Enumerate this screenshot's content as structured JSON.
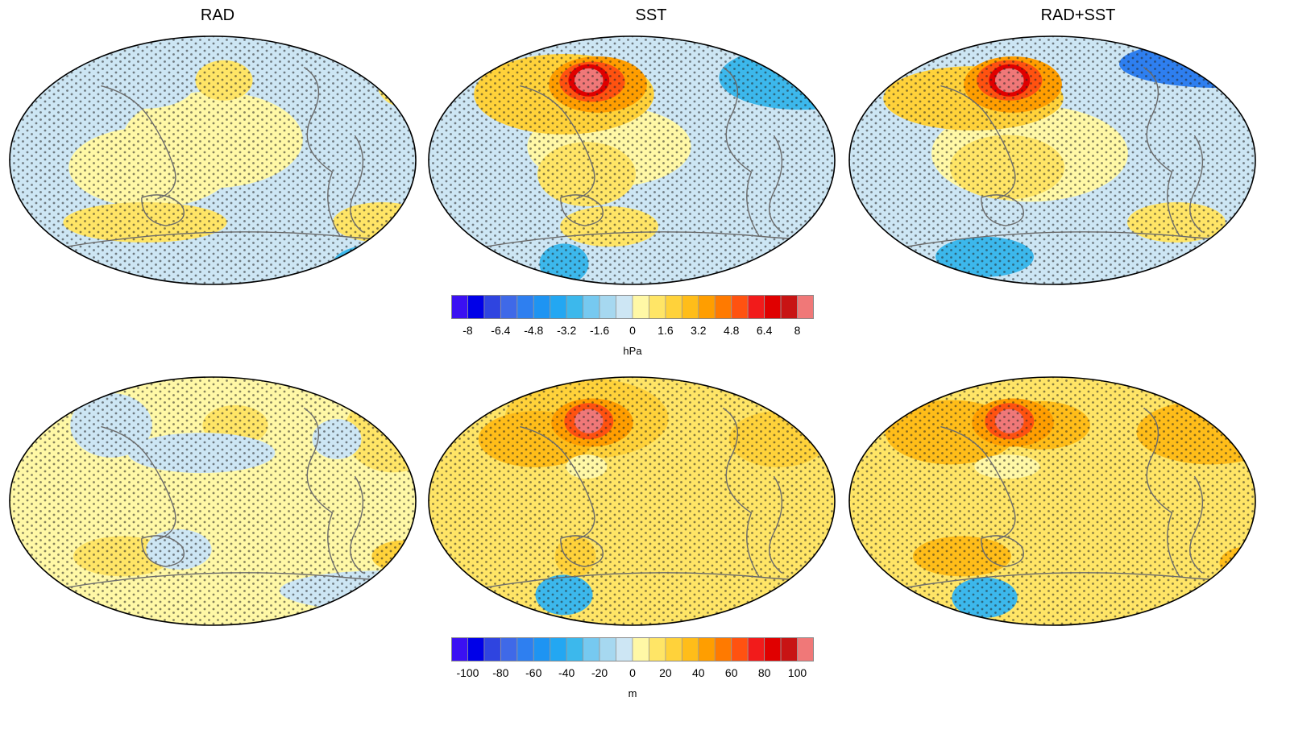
{
  "columns": [
    "RAD",
    "SST",
    "RAD+SST"
  ],
  "palette": [
    "#3b10f2",
    "#0000e8",
    "#2f44e0",
    "#3f69e8",
    "#2e7ff0",
    "#1e94f2",
    "#23a7f2",
    "#3cb8ec",
    "#76c9f0",
    "#a6d8f0",
    "#cde6f4",
    "#fff8a6",
    "#ffe566",
    "#ffd23a",
    "#ffbd19",
    "#ff9e00",
    "#ff7a00",
    "#ff5210",
    "#f21b1b",
    "#e00000",
    "#c81414",
    "#f07878"
  ],
  "rows": [
    {
      "name": "slp",
      "colorbar": {
        "ticks": [
          "-8",
          "-6.4",
          "-4.8",
          "-3.2",
          "-1.6",
          "0",
          "1.6",
          "3.2",
          "4.8",
          "6.4",
          "8"
        ],
        "unit": "hPa"
      },
      "panels": [
        {
          "column": "RAD",
          "background": "#cde6f4",
          "blobs": [
            {
              "lon": 0,
              "lat": 15,
              "rx": 0.22,
              "ry": 0.12,
              "c": "#fff8a6"
            },
            {
              "lon": -55,
              "lat": -5,
              "rx": 0.2,
              "ry": 0.1,
              "c": "#fff8a6"
            },
            {
              "lon": 175,
              "lat": 55,
              "rx": 0.08,
              "ry": 0.06,
              "c": "#ffe566"
            },
            {
              "lon": 10,
              "lat": 58,
              "rx": 0.07,
              "ry": 0.05,
              "c": "#ffe566"
            },
            {
              "lon": 170,
              "lat": -45,
              "rx": 0.06,
              "ry": 0.04,
              "c": "#ffd23a"
            },
            {
              "lon": 150,
              "lat": -45,
              "rx": 0.12,
              "ry": 0.05,
              "c": "#ffe566"
            },
            {
              "lon": -60,
              "lat": -45,
              "rx": 0.2,
              "ry": 0.05,
              "c": "#ffe566"
            },
            {
              "lon": 170,
              "lat": -75,
              "rx": 0.07,
              "ry": 0.05,
              "c": "#2f44e0"
            },
            {
              "lon": 150,
              "lat": -75,
              "rx": 0.12,
              "ry": 0.05,
              "c": "#3cb8ec"
            },
            {
              "lon": -60,
              "lat": 55,
              "rx": 0.12,
              "ry": 0.06,
              "c": "#cde6f4"
            }
          ]
        },
        {
          "column": "SST",
          "background": "#cde6f4",
          "blobs": [
            {
              "lon": -20,
              "lat": 10,
              "rx": 0.2,
              "ry": 0.1,
              "c": "#fff8a6"
            },
            {
              "lon": -40,
              "lat": -10,
              "rx": 0.12,
              "ry": 0.08,
              "c": "#ffe566"
            },
            {
              "lon": -60,
              "lat": 48,
              "rx": 0.22,
              "ry": 0.1,
              "c": "#ffd23a"
            },
            {
              "lon": -30,
              "lat": 55,
              "rx": 0.12,
              "ry": 0.07,
              "c": "#ff9e00"
            },
            {
              "lon": -35,
              "lat": 57,
              "rx": 0.08,
              "ry": 0.05,
              "c": "#ff5210"
            },
            {
              "lon": -38,
              "lat": 58,
              "rx": 0.05,
              "ry": 0.04,
              "c": "#e00000"
            },
            {
              "lon": -38,
              "lat": 58,
              "rx": 0.035,
              "ry": 0.03,
              "c": "#f07878"
            },
            {
              "lon": -60,
              "lat": -75,
              "rx": 0.06,
              "ry": 0.05,
              "c": "#3cb8ec"
            },
            {
              "lon": 150,
              "lat": 60,
              "rx": 0.2,
              "ry": 0.08,
              "c": "#3cb8ec"
            },
            {
              "lon": -20,
              "lat": -48,
              "rx": 0.12,
              "ry": 0.05,
              "c": "#ffe566"
            }
          ]
        },
        {
          "column": "RAD+SST",
          "background": "#cde6f4",
          "blobs": [
            {
              "lon": -20,
              "lat": 5,
              "rx": 0.24,
              "ry": 0.12,
              "c": "#fff8a6"
            },
            {
              "lon": -40,
              "lat": -5,
              "rx": 0.14,
              "ry": 0.08,
              "c": "#ffe566"
            },
            {
              "lon": -70,
              "lat": 45,
              "rx": 0.22,
              "ry": 0.08,
              "c": "#ffd23a"
            },
            {
              "lon": -35,
              "lat": 55,
              "rx": 0.12,
              "ry": 0.07,
              "c": "#ff9e00"
            },
            {
              "lon": -38,
              "lat": 58,
              "rx": 0.08,
              "ry": 0.05,
              "c": "#ff5210"
            },
            {
              "lon": -38,
              "lat": 58,
              "rx": 0.05,
              "ry": 0.04,
              "c": "#e00000"
            },
            {
              "lon": -38,
              "lat": 58,
              "rx": 0.035,
              "ry": 0.03,
              "c": "#f07878"
            },
            {
              "lon": 150,
              "lat": 70,
              "rx": 0.25,
              "ry": 0.06,
              "c": "#2e7ff0"
            },
            {
              "lon": -60,
              "lat": -70,
              "rx": 0.12,
              "ry": 0.05,
              "c": "#3cb8ec"
            },
            {
              "lon": 150,
              "lat": -75,
              "rx": 0.1,
              "ry": 0.05,
              "c": "#2f44e0"
            },
            {
              "lon": 110,
              "lat": -45,
              "rx": 0.12,
              "ry": 0.05,
              "c": "#ffe566"
            }
          ]
        }
      ]
    },
    {
      "name": "z500",
      "colorbar": {
        "ticks": [
          "-100",
          "-80",
          "-60",
          "-40",
          "-20",
          "0",
          "20",
          "40",
          "60",
          "80",
          "100"
        ],
        "unit": "m"
      },
      "panels": [
        {
          "column": "RAD",
          "background": "#fff8a6",
          "blobs": [
            {
              "lon": 160,
              "lat": 50,
              "rx": 0.12,
              "ry": 0.1,
              "c": "#ffe566"
            },
            {
              "lon": 20,
              "lat": 55,
              "rx": 0.08,
              "ry": 0.05,
              "c": "#ffe566"
            },
            {
              "lon": -90,
              "lat": 55,
              "rx": 0.1,
              "ry": 0.08,
              "c": "#cde6f4"
            },
            {
              "lon": -10,
              "lat": 35,
              "rx": 0.18,
              "ry": 0.05,
              "c": "#cde6f4"
            },
            {
              "lon": 110,
              "lat": 45,
              "rx": 0.06,
              "ry": 0.05,
              "c": "#cde6f4"
            },
            {
              "lon": 170,
              "lat": -40,
              "rx": 0.08,
              "ry": 0.04,
              "c": "#ffd23a"
            },
            {
              "lon": -80,
              "lat": -40,
              "rx": 0.12,
              "ry": 0.05,
              "c": "#ffe566"
            },
            {
              "lon": -30,
              "lat": -35,
              "rx": 0.08,
              "ry": 0.05,
              "c": "#cde6f4"
            },
            {
              "lon": 150,
              "lat": -65,
              "rx": 0.25,
              "ry": 0.05,
              "c": "#cde6f4"
            }
          ]
        },
        {
          "column": "SST",
          "background": "#ffe566",
          "blobs": [
            {
              "lon": -40,
              "lat": 60,
              "rx": 0.2,
              "ry": 0.1,
              "c": "#ffd23a"
            },
            {
              "lon": 130,
              "lat": 45,
              "rx": 0.12,
              "ry": 0.07,
              "c": "#ffd23a"
            },
            {
              "lon": -85,
              "lat": 45,
              "rx": 0.14,
              "ry": 0.07,
              "c": "#ffbd19"
            },
            {
              "lon": -35,
              "lat": 57,
              "rx": 0.1,
              "ry": 0.06,
              "c": "#ff9e00"
            },
            {
              "lon": -38,
              "lat": 58,
              "rx": 0.06,
              "ry": 0.045,
              "c": "#ff5210"
            },
            {
              "lon": -38,
              "lat": 58,
              "rx": 0.035,
              "ry": 0.03,
              "c": "#f07878"
            },
            {
              "lon": -60,
              "lat": -68,
              "rx": 0.07,
              "ry": 0.05,
              "c": "#3cb8ec"
            },
            {
              "lon": -40,
              "lat": 25,
              "rx": 0.05,
              "ry": 0.03,
              "c": "#fff8a6"
            },
            {
              "lon": -50,
              "lat": -40,
              "rx": 0.05,
              "ry": 0.05,
              "c": "#ffd23a"
            }
          ]
        },
        {
          "column": "RAD+SST",
          "background": "#ffe566",
          "blobs": [
            {
              "lon": 140,
              "lat": 50,
              "rx": 0.18,
              "ry": 0.08,
              "c": "#ffbd19"
            },
            {
              "lon": -90,
              "lat": 50,
              "rx": 0.16,
              "ry": 0.08,
              "c": "#ffbd19"
            },
            {
              "lon": -10,
              "lat": 55,
              "rx": 0.12,
              "ry": 0.06,
              "c": "#ffbd19"
            },
            {
              "lon": -35,
              "lat": 57,
              "rx": 0.1,
              "ry": 0.06,
              "c": "#ff9e00"
            },
            {
              "lon": -38,
              "lat": 58,
              "rx": 0.06,
              "ry": 0.045,
              "c": "#ff5210"
            },
            {
              "lon": -38,
              "lat": 58,
              "rx": 0.035,
              "ry": 0.03,
              "c": "#f07878"
            },
            {
              "lon": -60,
              "lat": -70,
              "rx": 0.08,
              "ry": 0.05,
              "c": "#3cb8ec"
            },
            {
              "lon": -80,
              "lat": -40,
              "rx": 0.12,
              "ry": 0.05,
              "c": "#ffbd19"
            },
            {
              "lon": 170,
              "lat": -45,
              "rx": 0.06,
              "ry": 0.04,
              "c": "#ffbd19"
            },
            {
              "lon": -40,
              "lat": 25,
              "rx": 0.08,
              "ry": 0.03,
              "c": "#fff8a6"
            }
          ]
        }
      ]
    }
  ]
}
